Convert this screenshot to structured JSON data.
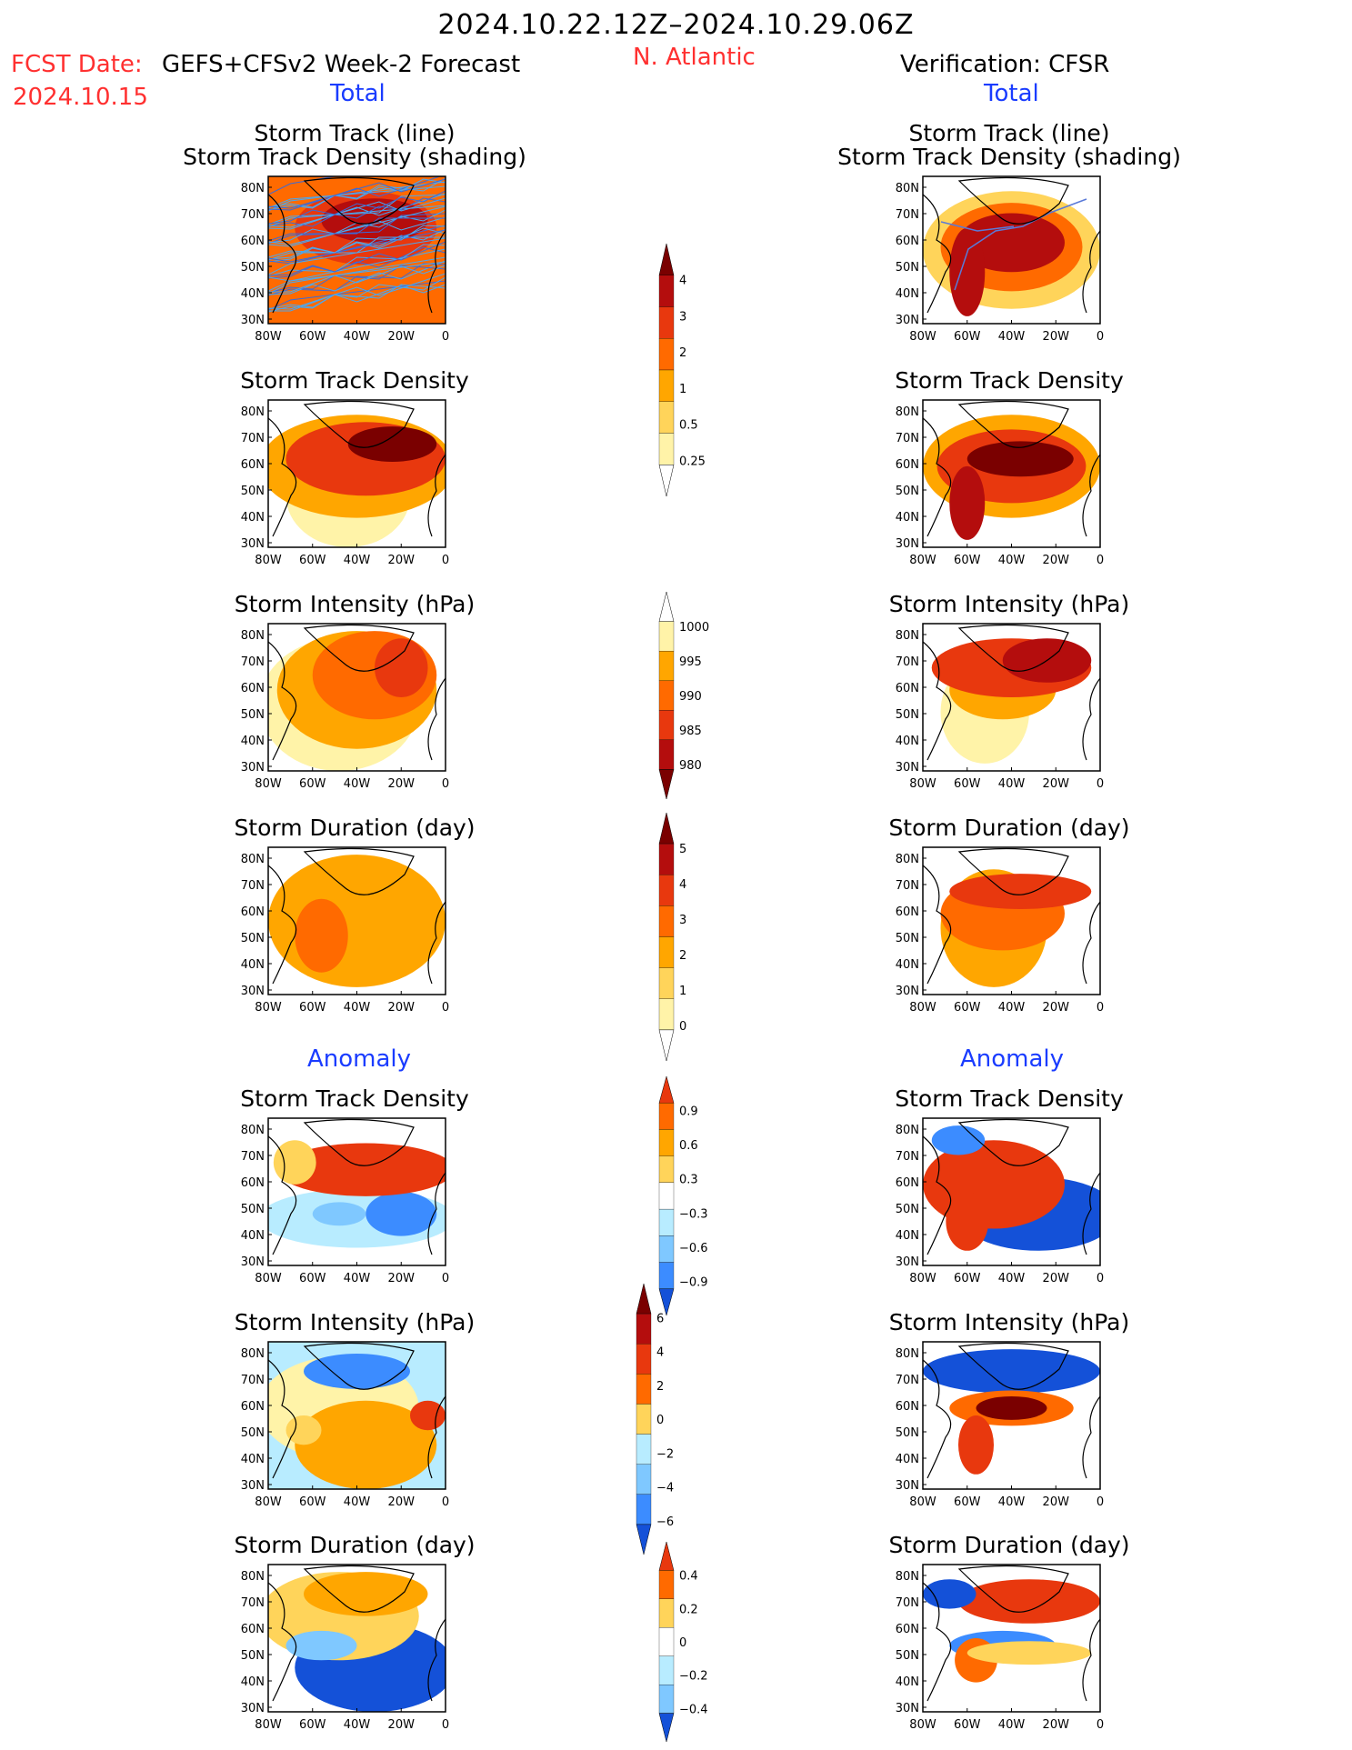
{
  "header": {
    "title": "2024.10.22.12Z–2024.10.29.06Z",
    "fcst_label": "FCST Date:",
    "fcst_model": "GEFS+CFSv2 Week-2 Forecast",
    "fcst_date": "2024.10.15",
    "region": "N. Atlantic",
    "verification": "Verification: CFSR"
  },
  "sections": {
    "left_total": "Total",
    "right_total": "Total",
    "left_anomaly": "Anomaly",
    "right_anomaly": "Anomaly"
  },
  "panel_titles": {
    "track_line": "Storm Track (line)",
    "track_shading": "Storm Track Density (shading)",
    "density": "Storm Track Density",
    "intensity": "Storm Intensity (hPa)",
    "duration": "Storm Duration (day)"
  },
  "axes": {
    "lat_labels": [
      "80N",
      "70N",
      "60N",
      "50N",
      "40N",
      "30N"
    ],
    "lon_labels": [
      "80W",
      "60W",
      "40W",
      "20W",
      "0"
    ]
  },
  "colorbars": {
    "density_total": [
      "4",
      "3",
      "2",
      "1",
      "0.5",
      "0.25"
    ],
    "intensity_total": [
      "1000",
      "995",
      "990",
      "985",
      "980"
    ],
    "duration_total": [
      "5",
      "4",
      "3",
      "2",
      "1",
      "0"
    ],
    "density_anom": [
      "0.9",
      "0.6",
      "0.3",
      "−0.3",
      "−0.6",
      "−0.9"
    ],
    "intensity_anom": [
      "6",
      "4",
      "2",
      "0",
      "−2",
      "−4",
      "−6"
    ],
    "duration_anom": [
      "0.4",
      "0.2",
      "0",
      "−0.2",
      "−0.4"
    ]
  },
  "colors": {
    "title_red": "#ff3030",
    "section_blue": "#1a3cff",
    "warm": [
      "#fff3a8",
      "#ffd45a",
      "#ffa600",
      "#ff6a00",
      "#e8380e",
      "#b40d0d",
      "#7a0000"
    ],
    "cool": [
      "#b8ecff",
      "#7fc8ff",
      "#3c8cff",
      "#1451d8"
    ]
  }
}
